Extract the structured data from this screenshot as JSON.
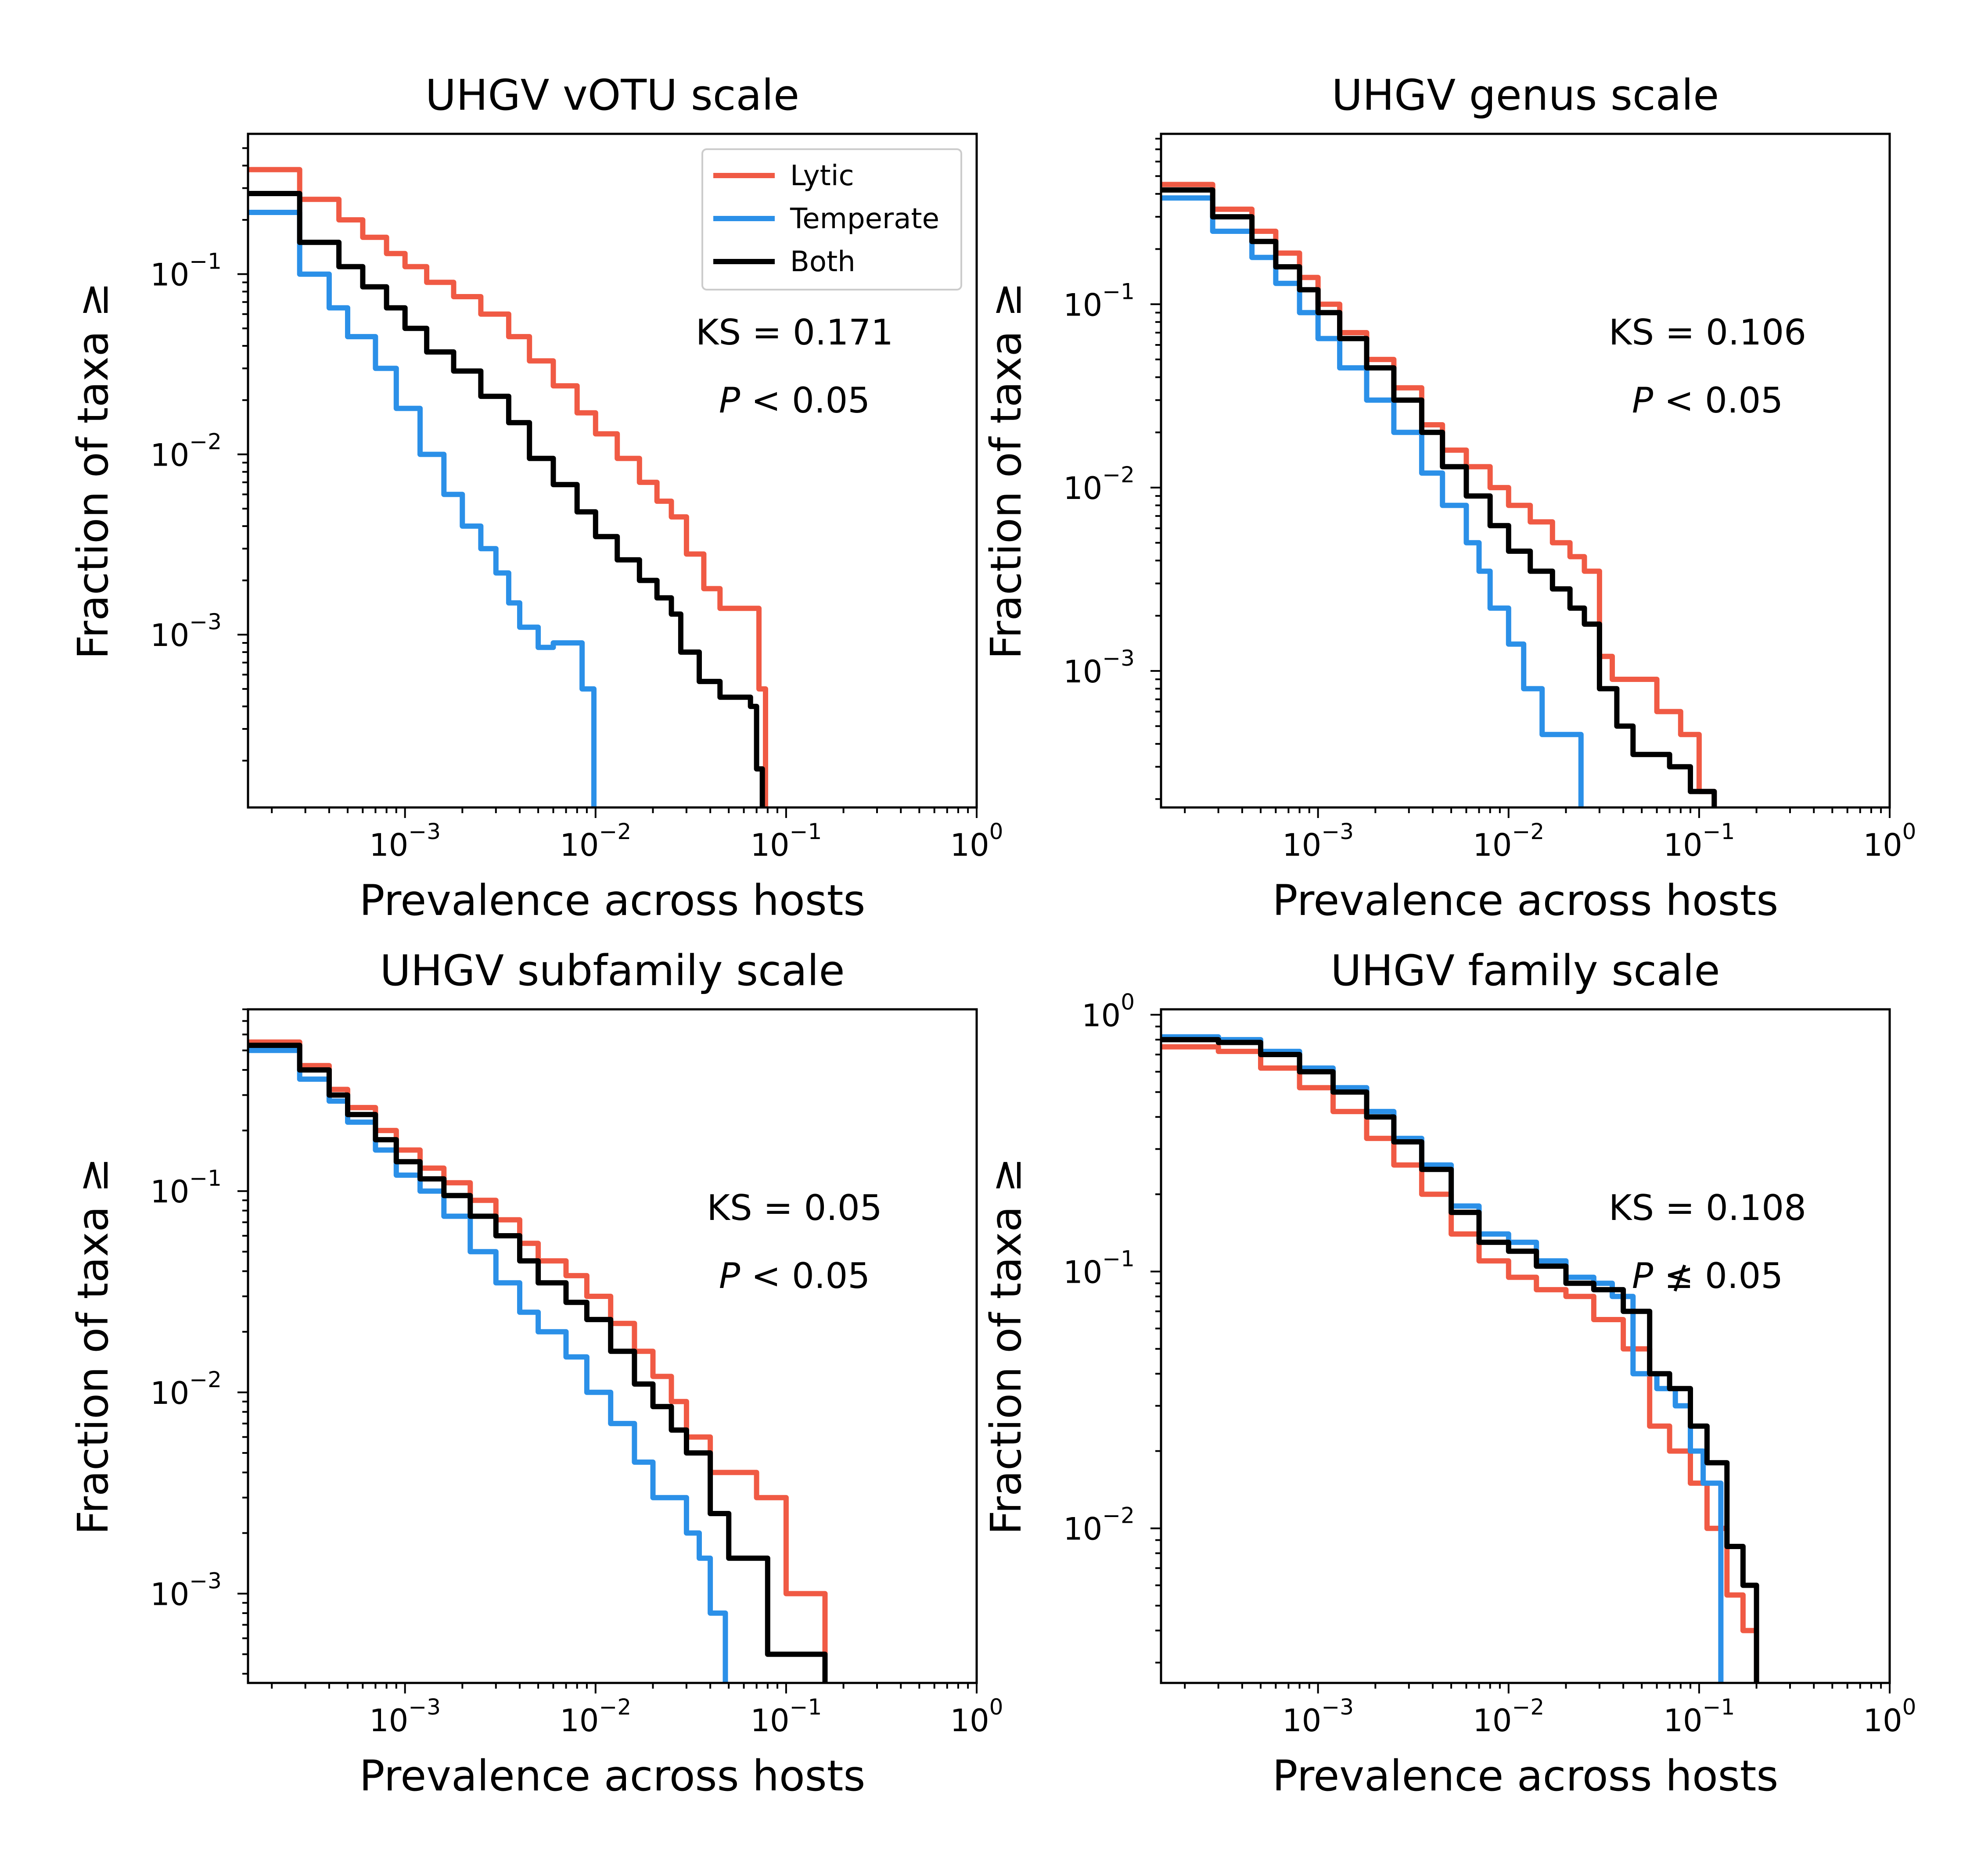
{
  "colors": {
    "Lytic": "#f05a44",
    "Temperate": "#2b90e8",
    "Both": "#000000"
  },
  "legend": {
    "placement": "top-right",
    "panel_index": 0,
    "entries": [
      "Lytic",
      "Temperate",
      "Both"
    ]
  },
  "chart_data": [
    {
      "type": "line",
      "title": "UHGV vOTU scale",
      "xlabel": "Prevalence across hosts",
      "ylabel": "Fraction of taxa ≥",
      "xscale": "log",
      "yscale": "log",
      "xlim": [
        0.00015,
        1.0
      ],
      "ylim": [
        0.00011,
        0.6
      ],
      "xticks": [
        {
          "base": "10",
          "exp": "−3",
          "value": 0.001
        },
        {
          "base": "10",
          "exp": "−2",
          "value": 0.01
        },
        {
          "base": "10",
          "exp": "−1",
          "value": 0.1
        },
        {
          "base": "10",
          "exp": "0",
          "value": 1
        }
      ],
      "yticks": [
        {
          "base": "10",
          "exp": "−1",
          "value": 0.1
        },
        {
          "base": "10",
          "exp": "−2",
          "value": 0.01
        },
        {
          "base": "10",
          "exp": "−3",
          "value": 0.001
        }
      ],
      "annotation": {
        "ks": "KS = 0.171",
        "p_prefix": "P",
        "p_rest": " < 0.05"
      },
      "series": [
        {
          "name": "Lytic",
          "step": true,
          "x": [
            0.00015,
            0.00028,
            0.00028,
            0.00045,
            0.0006,
            0.0008,
            0.001,
            0.0013,
            0.0018,
            0.0025,
            0.0035,
            0.0045,
            0.006,
            0.008,
            0.01,
            0.013,
            0.017,
            0.021,
            0.025,
            0.03,
            0.037,
            0.045,
            0.055,
            0.065,
            0.072,
            0.078,
            0.078
          ],
          "y": [
            0.38,
            0.38,
            0.26,
            0.2,
            0.16,
            0.13,
            0.11,
            0.09,
            0.075,
            0.06,
            0.045,
            0.033,
            0.024,
            0.017,
            0.013,
            0.0095,
            0.007,
            0.0055,
            0.0045,
            0.0028,
            0.0018,
            0.0014,
            0.0014,
            0.0014,
            0.0005,
            0.0005,
            0.00011
          ]
        },
        {
          "name": "Temperate",
          "step": true,
          "x": [
            0.00015,
            0.00028,
            0.00028,
            0.0004,
            0.0005,
            0.0007,
            0.0009,
            0.0012,
            0.0016,
            0.002,
            0.0025,
            0.003,
            0.0035,
            0.004,
            0.005,
            0.006,
            0.007,
            0.0085,
            0.0098,
            0.0098
          ],
          "y": [
            0.22,
            0.22,
            0.1,
            0.065,
            0.045,
            0.03,
            0.018,
            0.01,
            0.006,
            0.004,
            0.003,
            0.0022,
            0.0015,
            0.0011,
            0.00085,
            0.0009,
            0.0009,
            0.0005,
            0.00011,
            0.00011
          ]
        },
        {
          "name": "Both",
          "step": true,
          "x": [
            0.00015,
            0.00028,
            0.00028,
            0.00045,
            0.0006,
            0.0008,
            0.001,
            0.0013,
            0.0018,
            0.0025,
            0.0035,
            0.0045,
            0.006,
            0.008,
            0.01,
            0.013,
            0.017,
            0.021,
            0.025,
            0.028,
            0.035,
            0.045,
            0.055,
            0.065,
            0.07,
            0.075,
            0.075
          ],
          "y": [
            0.28,
            0.28,
            0.15,
            0.11,
            0.085,
            0.065,
            0.05,
            0.037,
            0.029,
            0.021,
            0.015,
            0.0095,
            0.0068,
            0.0048,
            0.0035,
            0.0026,
            0.002,
            0.0016,
            0.0013,
            0.0008,
            0.00055,
            0.00045,
            0.00045,
            0.0004,
            0.00018,
            0.00015,
            0.00011
          ]
        }
      ]
    },
    {
      "type": "line",
      "title": "UHGV genus scale",
      "xlabel": "Prevalence across hosts",
      "ylabel": "Fraction of taxa ≥",
      "xscale": "log",
      "yscale": "log",
      "xlim": [
        0.00015,
        1.0
      ],
      "ylim": [
        0.00018,
        0.85
      ],
      "xticks": [
        {
          "base": "10",
          "exp": "−3",
          "value": 0.001
        },
        {
          "base": "10",
          "exp": "−2",
          "value": 0.01
        },
        {
          "base": "10",
          "exp": "−1",
          "value": 0.1
        },
        {
          "base": "10",
          "exp": "0",
          "value": 1
        }
      ],
      "yticks": [
        {
          "base": "10",
          "exp": "−1",
          "value": 0.1
        },
        {
          "base": "10",
          "exp": "−2",
          "value": 0.01
        },
        {
          "base": "10",
          "exp": "−3",
          "value": 0.001
        }
      ],
      "annotation": {
        "ks": "KS = 0.106",
        "p_prefix": "P",
        "p_rest": " < 0.05"
      },
      "series": [
        {
          "name": "Lytic",
          "step": true,
          "x": [
            0.00015,
            0.00028,
            0.00028,
            0.00045,
            0.0006,
            0.0008,
            0.001,
            0.0013,
            0.0018,
            0.0025,
            0.0035,
            0.0045,
            0.006,
            0.008,
            0.01,
            0.013,
            0.017,
            0.021,
            0.025,
            0.03,
            0.035,
            0.045,
            0.06,
            0.08,
            0.1,
            0.12,
            0.12
          ],
          "y": [
            0.45,
            0.45,
            0.33,
            0.25,
            0.19,
            0.14,
            0.1,
            0.07,
            0.05,
            0.035,
            0.022,
            0.016,
            0.013,
            0.01,
            0.008,
            0.0065,
            0.005,
            0.0042,
            0.0035,
            0.0012,
            0.0009,
            0.0009,
            0.0006,
            0.00045,
            0.00022,
            0.00022,
            0.00018
          ]
        },
        {
          "name": "Temperate",
          "step": true,
          "x": [
            0.00015,
            0.00028,
            0.00028,
            0.00045,
            0.0006,
            0.0008,
            0.001,
            0.0013,
            0.0018,
            0.0025,
            0.0035,
            0.0045,
            0.006,
            0.007,
            0.008,
            0.01,
            0.012,
            0.015,
            0.02,
            0.024,
            0.024
          ],
          "y": [
            0.38,
            0.38,
            0.25,
            0.18,
            0.13,
            0.09,
            0.065,
            0.045,
            0.03,
            0.02,
            0.012,
            0.008,
            0.005,
            0.0035,
            0.0022,
            0.0014,
            0.0008,
            0.00045,
            0.00045,
            0.00045,
            0.00018
          ]
        },
        {
          "name": "Both",
          "step": true,
          "x": [
            0.00015,
            0.00028,
            0.00028,
            0.00045,
            0.0006,
            0.0008,
            0.001,
            0.0013,
            0.0018,
            0.0025,
            0.0035,
            0.0045,
            0.006,
            0.008,
            0.01,
            0.013,
            0.017,
            0.021,
            0.025,
            0.03,
            0.037,
            0.045,
            0.055,
            0.07,
            0.09,
            0.12,
            0.12
          ],
          "y": [
            0.42,
            0.42,
            0.3,
            0.22,
            0.16,
            0.12,
            0.09,
            0.065,
            0.045,
            0.03,
            0.02,
            0.013,
            0.009,
            0.0062,
            0.0045,
            0.0035,
            0.0028,
            0.0022,
            0.0018,
            0.0008,
            0.0005,
            0.00035,
            0.00035,
            0.0003,
            0.00022,
            0.00022,
            0.00018
          ]
        }
      ]
    },
    {
      "type": "line",
      "title": "UHGV subfamily scale",
      "xlabel": "Prevalence across hosts",
      "ylabel": "Fraction of taxa ≥",
      "xscale": "log",
      "yscale": "log",
      "xlim": [
        0.00015,
        1.0
      ],
      "ylim": [
        0.00036,
        0.8
      ],
      "xticks": [
        {
          "base": "10",
          "exp": "−3",
          "value": 0.001
        },
        {
          "base": "10",
          "exp": "−2",
          "value": 0.01
        },
        {
          "base": "10",
          "exp": "−1",
          "value": 0.1
        },
        {
          "base": "10",
          "exp": "0",
          "value": 1
        }
      ],
      "yticks": [
        {
          "base": "10",
          "exp": "−1",
          "value": 0.1
        },
        {
          "base": "10",
          "exp": "−2",
          "value": 0.01
        },
        {
          "base": "10",
          "exp": "−3",
          "value": 0.001
        }
      ],
      "annotation": {
        "ks": "KS = 0.05",
        "p_prefix": "P",
        "p_rest": " < 0.05"
      },
      "series": [
        {
          "name": "Lytic",
          "step": true,
          "x": [
            0.00015,
            0.00028,
            0.00028,
            0.0004,
            0.0005,
            0.0007,
            0.0009,
            0.0012,
            0.0016,
            0.0022,
            0.003,
            0.004,
            0.005,
            0.007,
            0.009,
            0.012,
            0.016,
            0.02,
            0.025,
            0.03,
            0.04,
            0.05,
            0.07,
            0.1,
            0.16,
            0.16
          ],
          "y": [
            0.55,
            0.55,
            0.42,
            0.32,
            0.26,
            0.2,
            0.16,
            0.13,
            0.11,
            0.09,
            0.072,
            0.055,
            0.045,
            0.038,
            0.03,
            0.022,
            0.016,
            0.012,
            0.009,
            0.006,
            0.004,
            0.004,
            0.003,
            0.001,
            0.001,
            0.00036
          ]
        },
        {
          "name": "Temperate",
          "step": true,
          "x": [
            0.00015,
            0.00028,
            0.00028,
            0.0004,
            0.0005,
            0.0007,
            0.0009,
            0.0012,
            0.0016,
            0.0022,
            0.003,
            0.004,
            0.005,
            0.007,
            0.009,
            0.012,
            0.016,
            0.02,
            0.025,
            0.03,
            0.035,
            0.04,
            0.048,
            0.048
          ],
          "y": [
            0.5,
            0.5,
            0.36,
            0.28,
            0.22,
            0.16,
            0.12,
            0.1,
            0.075,
            0.05,
            0.035,
            0.025,
            0.02,
            0.015,
            0.01,
            0.007,
            0.0045,
            0.003,
            0.003,
            0.002,
            0.0015,
            0.0008,
            0.0008,
            0.00036
          ]
        },
        {
          "name": "Both",
          "step": true,
          "x": [
            0.00015,
            0.00028,
            0.00028,
            0.0004,
            0.0005,
            0.0007,
            0.0009,
            0.0012,
            0.0016,
            0.0022,
            0.003,
            0.004,
            0.005,
            0.007,
            0.009,
            0.012,
            0.016,
            0.02,
            0.025,
            0.03,
            0.04,
            0.05,
            0.065,
            0.08,
            0.1,
            0.16,
            0.16
          ],
          "y": [
            0.53,
            0.53,
            0.4,
            0.3,
            0.24,
            0.18,
            0.14,
            0.115,
            0.095,
            0.075,
            0.06,
            0.045,
            0.035,
            0.028,
            0.023,
            0.016,
            0.011,
            0.0085,
            0.0065,
            0.005,
            0.0025,
            0.0015,
            0.0015,
            0.0005,
            0.0005,
            0.0005,
            0.00036
          ]
        }
      ]
    },
    {
      "type": "line",
      "title": "UHGV family scale",
      "xlabel": "Prevalence across hosts",
      "ylabel": "Fraction of taxa ≥",
      "xscale": "log",
      "yscale": "log",
      "xlim": [
        0.00015,
        1.0
      ],
      "ylim": [
        0.0025,
        1.05
      ],
      "xticks": [
        {
          "base": "10",
          "exp": "−3",
          "value": 0.001
        },
        {
          "base": "10",
          "exp": "−2",
          "value": 0.01
        },
        {
          "base": "10",
          "exp": "−1",
          "value": 0.1
        },
        {
          "base": "10",
          "exp": "0",
          "value": 1
        }
      ],
      "yticks": [
        {
          "base": "10",
          "exp": "0",
          "value": 1
        },
        {
          "base": "10",
          "exp": "−1",
          "value": 0.1
        },
        {
          "base": "10",
          "exp": "−2",
          "value": 0.01
        }
      ],
      "annotation": {
        "ks": "KS = 0.108",
        "p_prefix": "P",
        "p_rest": " ≰ 0.05"
      },
      "series": [
        {
          "name": "Lytic",
          "step": true,
          "x": [
            0.00015,
            0.0003,
            0.0005,
            0.0008,
            0.0012,
            0.0018,
            0.0025,
            0.0035,
            0.005,
            0.007,
            0.01,
            0.014,
            0.02,
            0.028,
            0.04,
            0.055,
            0.07,
            0.09,
            0.11,
            0.14,
            0.17,
            0.2,
            0.2
          ],
          "y": [
            0.75,
            0.72,
            0.62,
            0.52,
            0.42,
            0.33,
            0.26,
            0.2,
            0.14,
            0.11,
            0.095,
            0.085,
            0.08,
            0.065,
            0.05,
            0.025,
            0.02,
            0.015,
            0.01,
            0.0055,
            0.004,
            0.0025,
            0.0025
          ]
        },
        {
          "name": "Temperate",
          "step": true,
          "x": [
            0.00015,
            0.0003,
            0.0005,
            0.0008,
            0.0012,
            0.0018,
            0.0025,
            0.0035,
            0.005,
            0.007,
            0.01,
            0.014,
            0.02,
            0.028,
            0.035,
            0.045,
            0.06,
            0.075,
            0.09,
            0.105,
            0.13,
            0.13
          ],
          "y": [
            0.82,
            0.8,
            0.72,
            0.62,
            0.52,
            0.42,
            0.33,
            0.26,
            0.18,
            0.14,
            0.13,
            0.11,
            0.095,
            0.09,
            0.08,
            0.04,
            0.035,
            0.03,
            0.02,
            0.015,
            0.0025,
            0.0025
          ]
        },
        {
          "name": "Both",
          "step": true,
          "x": [
            0.00015,
            0.0003,
            0.0005,
            0.0008,
            0.0012,
            0.0018,
            0.0025,
            0.0035,
            0.005,
            0.007,
            0.01,
            0.014,
            0.02,
            0.028,
            0.04,
            0.055,
            0.07,
            0.09,
            0.11,
            0.14,
            0.17,
            0.2,
            0.2
          ],
          "y": [
            0.8,
            0.78,
            0.7,
            0.6,
            0.5,
            0.4,
            0.32,
            0.25,
            0.17,
            0.13,
            0.12,
            0.105,
            0.09,
            0.085,
            0.07,
            0.04,
            0.035,
            0.025,
            0.018,
            0.0085,
            0.006,
            0.0035,
            0.0025
          ]
        }
      ]
    }
  ]
}
